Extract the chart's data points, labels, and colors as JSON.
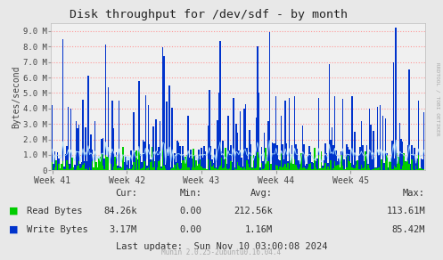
{
  "title": "Disk throughput for /dev/sdf - by month",
  "ylabel": "Bytes/second",
  "bg_color": "#e8e8e8",
  "plot_bg_color": "#f0f0f0",
  "grid_color": "#ff9999",
  "yticks": [
    0,
    1000000,
    2000000,
    3000000,
    4000000,
    5000000,
    6000000,
    7000000,
    8000000,
    9000000
  ],
  "ytick_labels": [
    "0",
    "1.0 M",
    "2.0 M",
    "3.0 M",
    "4.0 M",
    "5.0 M",
    "6.0 M",
    "7.0 M",
    "8.0 M",
    "9.0 M"
  ],
  "ylim": [
    0,
    9500000
  ],
  "week_labels": [
    "Week 41",
    "Week 42",
    "Week 43",
    "Week 44",
    "Week 45"
  ],
  "read_color": "#00cc00",
  "write_color": "#0033cc",
  "line_color": "#aaddff",
  "legend_read": "Read Bytes",
  "legend_write": "Write Bytes",
  "footer": "Munin 2.0.25-2ubuntu0.16.04.4",
  "last_update": "Last update:  Sun Nov 10 03:00:08 2024",
  "right_label": "RRDTOOL / TOBI OETIKER",
  "num_points": 280
}
